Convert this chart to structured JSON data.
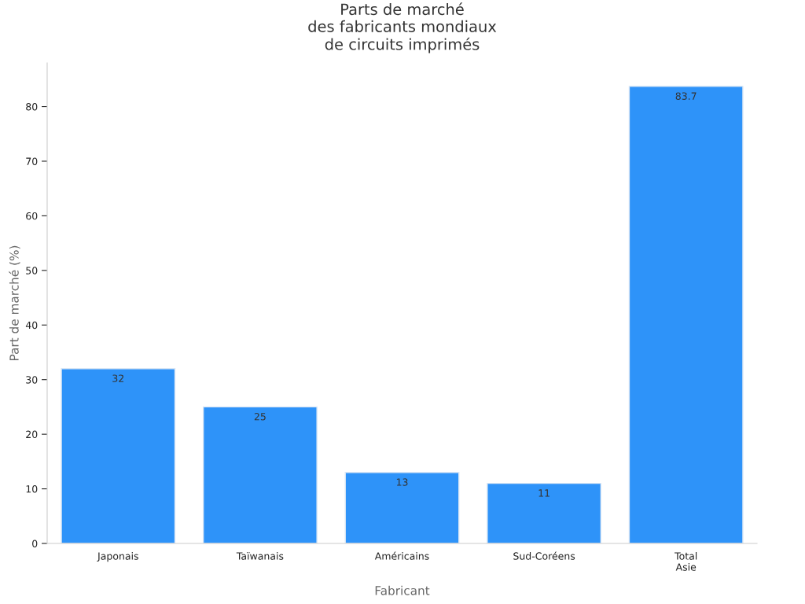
{
  "chart_data": {
    "type": "bar",
    "title": "Parts de marché\ndes fabricants mondiaux\nde circuits imprimés",
    "xlabel": "Fabricant",
    "ylabel": "Part de marché (%)",
    "categories": [
      "Japonais",
      "Taïwanais",
      "Américains",
      "Sud-Coréens",
      "Total\nAsie"
    ],
    "values": [
      32,
      25,
      13,
      11,
      83.7
    ],
    "color": "#2e93f9",
    "ylim": [
      0,
      88
    ],
    "yticks": [
      0,
      10,
      20,
      30,
      40,
      50,
      60,
      70,
      80
    ],
    "data_labels": true,
    "grid": false,
    "legend": false
  }
}
